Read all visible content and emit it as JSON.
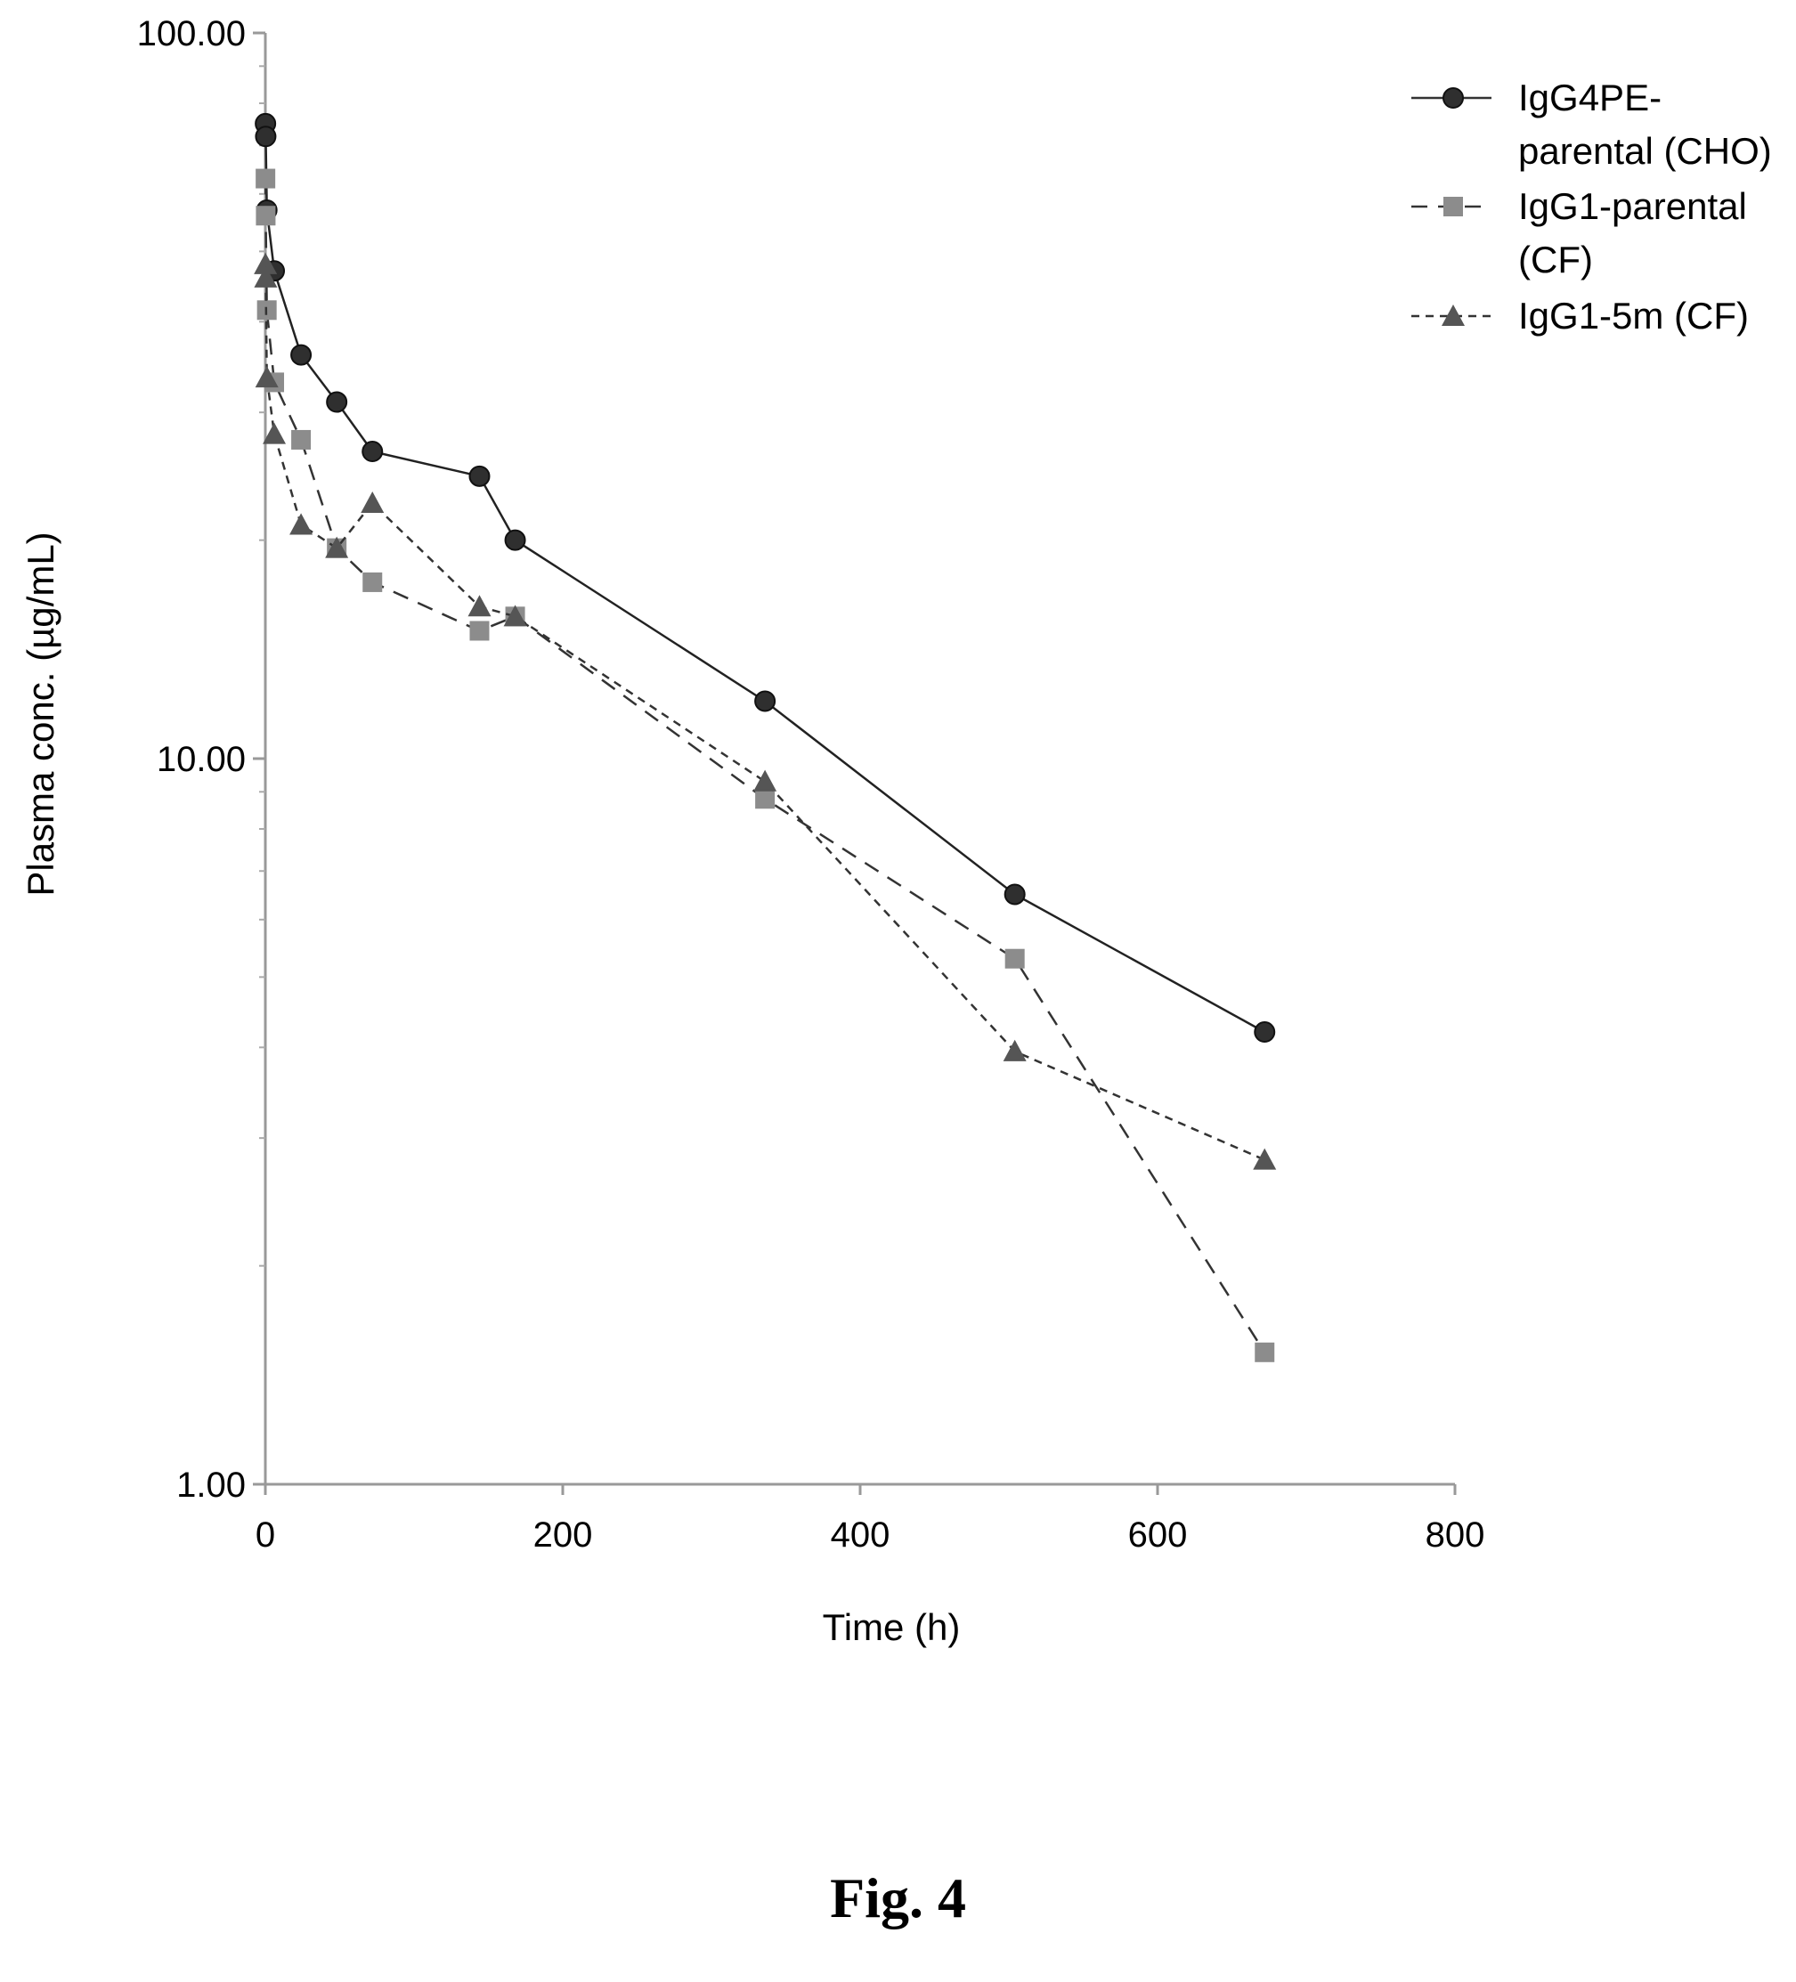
{
  "figure_caption": "Fig. 4",
  "chart_data": {
    "type": "line",
    "xlabel": "Time (h)",
    "ylabel": "Plasma conc. (µg/mL)",
    "x_scale": "linear",
    "y_scale": "log",
    "xlim": [
      0,
      800
    ],
    "ylim": [
      1,
      100
    ],
    "x_ticks": [
      0,
      200,
      400,
      600,
      800
    ],
    "x_tick_labels": [
      "0",
      "200",
      "400",
      "600",
      "800"
    ],
    "y_ticks": [
      1,
      10,
      100
    ],
    "y_tick_labels": [
      "1.00",
      "10.00",
      "100.00"
    ],
    "grid": false,
    "legend_position": "top-right",
    "series": [
      {
        "name": "IgG4PE-parental (CHO)",
        "legend_lines": [
          "IgG4PE-",
          "parental (CHO)"
        ],
        "marker": "circle",
        "line_style": "solid",
        "color": "#2f2f2f",
        "x": [
          0.083,
          0.25,
          1,
          6,
          24,
          48,
          72,
          144,
          168,
          336,
          504,
          672
        ],
        "y": [
          75,
          72,
          57,
          47,
          36,
          31,
          26.5,
          24.5,
          20,
          12,
          6.5,
          4.2
        ]
      },
      {
        "name": "IgG1-parental (CF)",
        "legend_lines": [
          "IgG1-parental",
          "(CF)"
        ],
        "marker": "square",
        "line_style": "dashed",
        "color": "#8c8c8c",
        "x": [
          0.083,
          0.25,
          1,
          6,
          24,
          48,
          72,
          144,
          168,
          336,
          504,
          672
        ],
        "y": [
          63,
          56,
          41.5,
          33,
          27.5,
          19.5,
          17.5,
          15,
          15.7,
          8.8,
          5.3,
          1.52
        ]
      },
      {
        "name": "IgG1-5m (CF)",
        "legend_lines": [
          "IgG1-5m (CF)"
        ],
        "marker": "triangle",
        "line_style": "dotted",
        "color": "#555555",
        "x": [
          0.083,
          0.25,
          1,
          6,
          24,
          48,
          72,
          144,
          168,
          336,
          504,
          672
        ],
        "y": [
          48,
          46,
          33.5,
          28,
          21,
          19.5,
          22.5,
          16.2,
          15.7,
          9.3,
          3.95,
          2.8
        ]
      }
    ]
  }
}
